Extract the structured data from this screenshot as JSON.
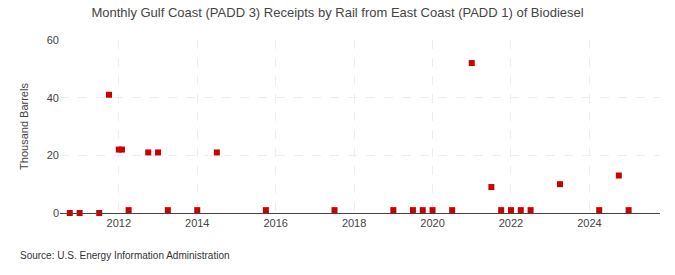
{
  "chart_data": {
    "type": "scatter",
    "title": "Monthly Gulf Coast (PADD 3) Receipts by Rail from East Coast (PADD 1) of Biodiesel",
    "ylabel": "Thousand Barrels",
    "annotation": "Source: U.S. Energy Information Administration",
    "color": "#cc0000",
    "marker": "square",
    "grid": true,
    "xlim": [
      2010.5,
      2025.8
    ],
    "xticks": [
      2012,
      2014,
      2016,
      2018,
      2020,
      2022,
      2024
    ],
    "ylim": [
      0,
      60
    ],
    "yticks": [
      0,
      20,
      40,
      60
    ],
    "x": [
      2010.75,
      2011.0,
      2011.5,
      2011.75,
      2012.0,
      2012.08,
      2012.25,
      2012.75,
      2013.0,
      2013.25,
      2014.0,
      2014.5,
      2015.75,
      2017.5,
      2019.0,
      2019.5,
      2019.75,
      2020.0,
      2020.5,
      2021.0,
      2021.5,
      2021.75,
      2022.0,
      2022.25,
      2022.5,
      2023.25,
      2024.25,
      2024.75,
      2025.0
    ],
    "values": [
      0,
      0,
      0,
      41,
      22,
      22,
      1,
      21,
      21,
      1,
      1,
      21,
      1,
      1,
      1,
      1,
      1,
      1,
      1,
      52,
      9,
      1,
      1,
      1,
      1,
      10,
      1,
      13,
      1
    ]
  }
}
